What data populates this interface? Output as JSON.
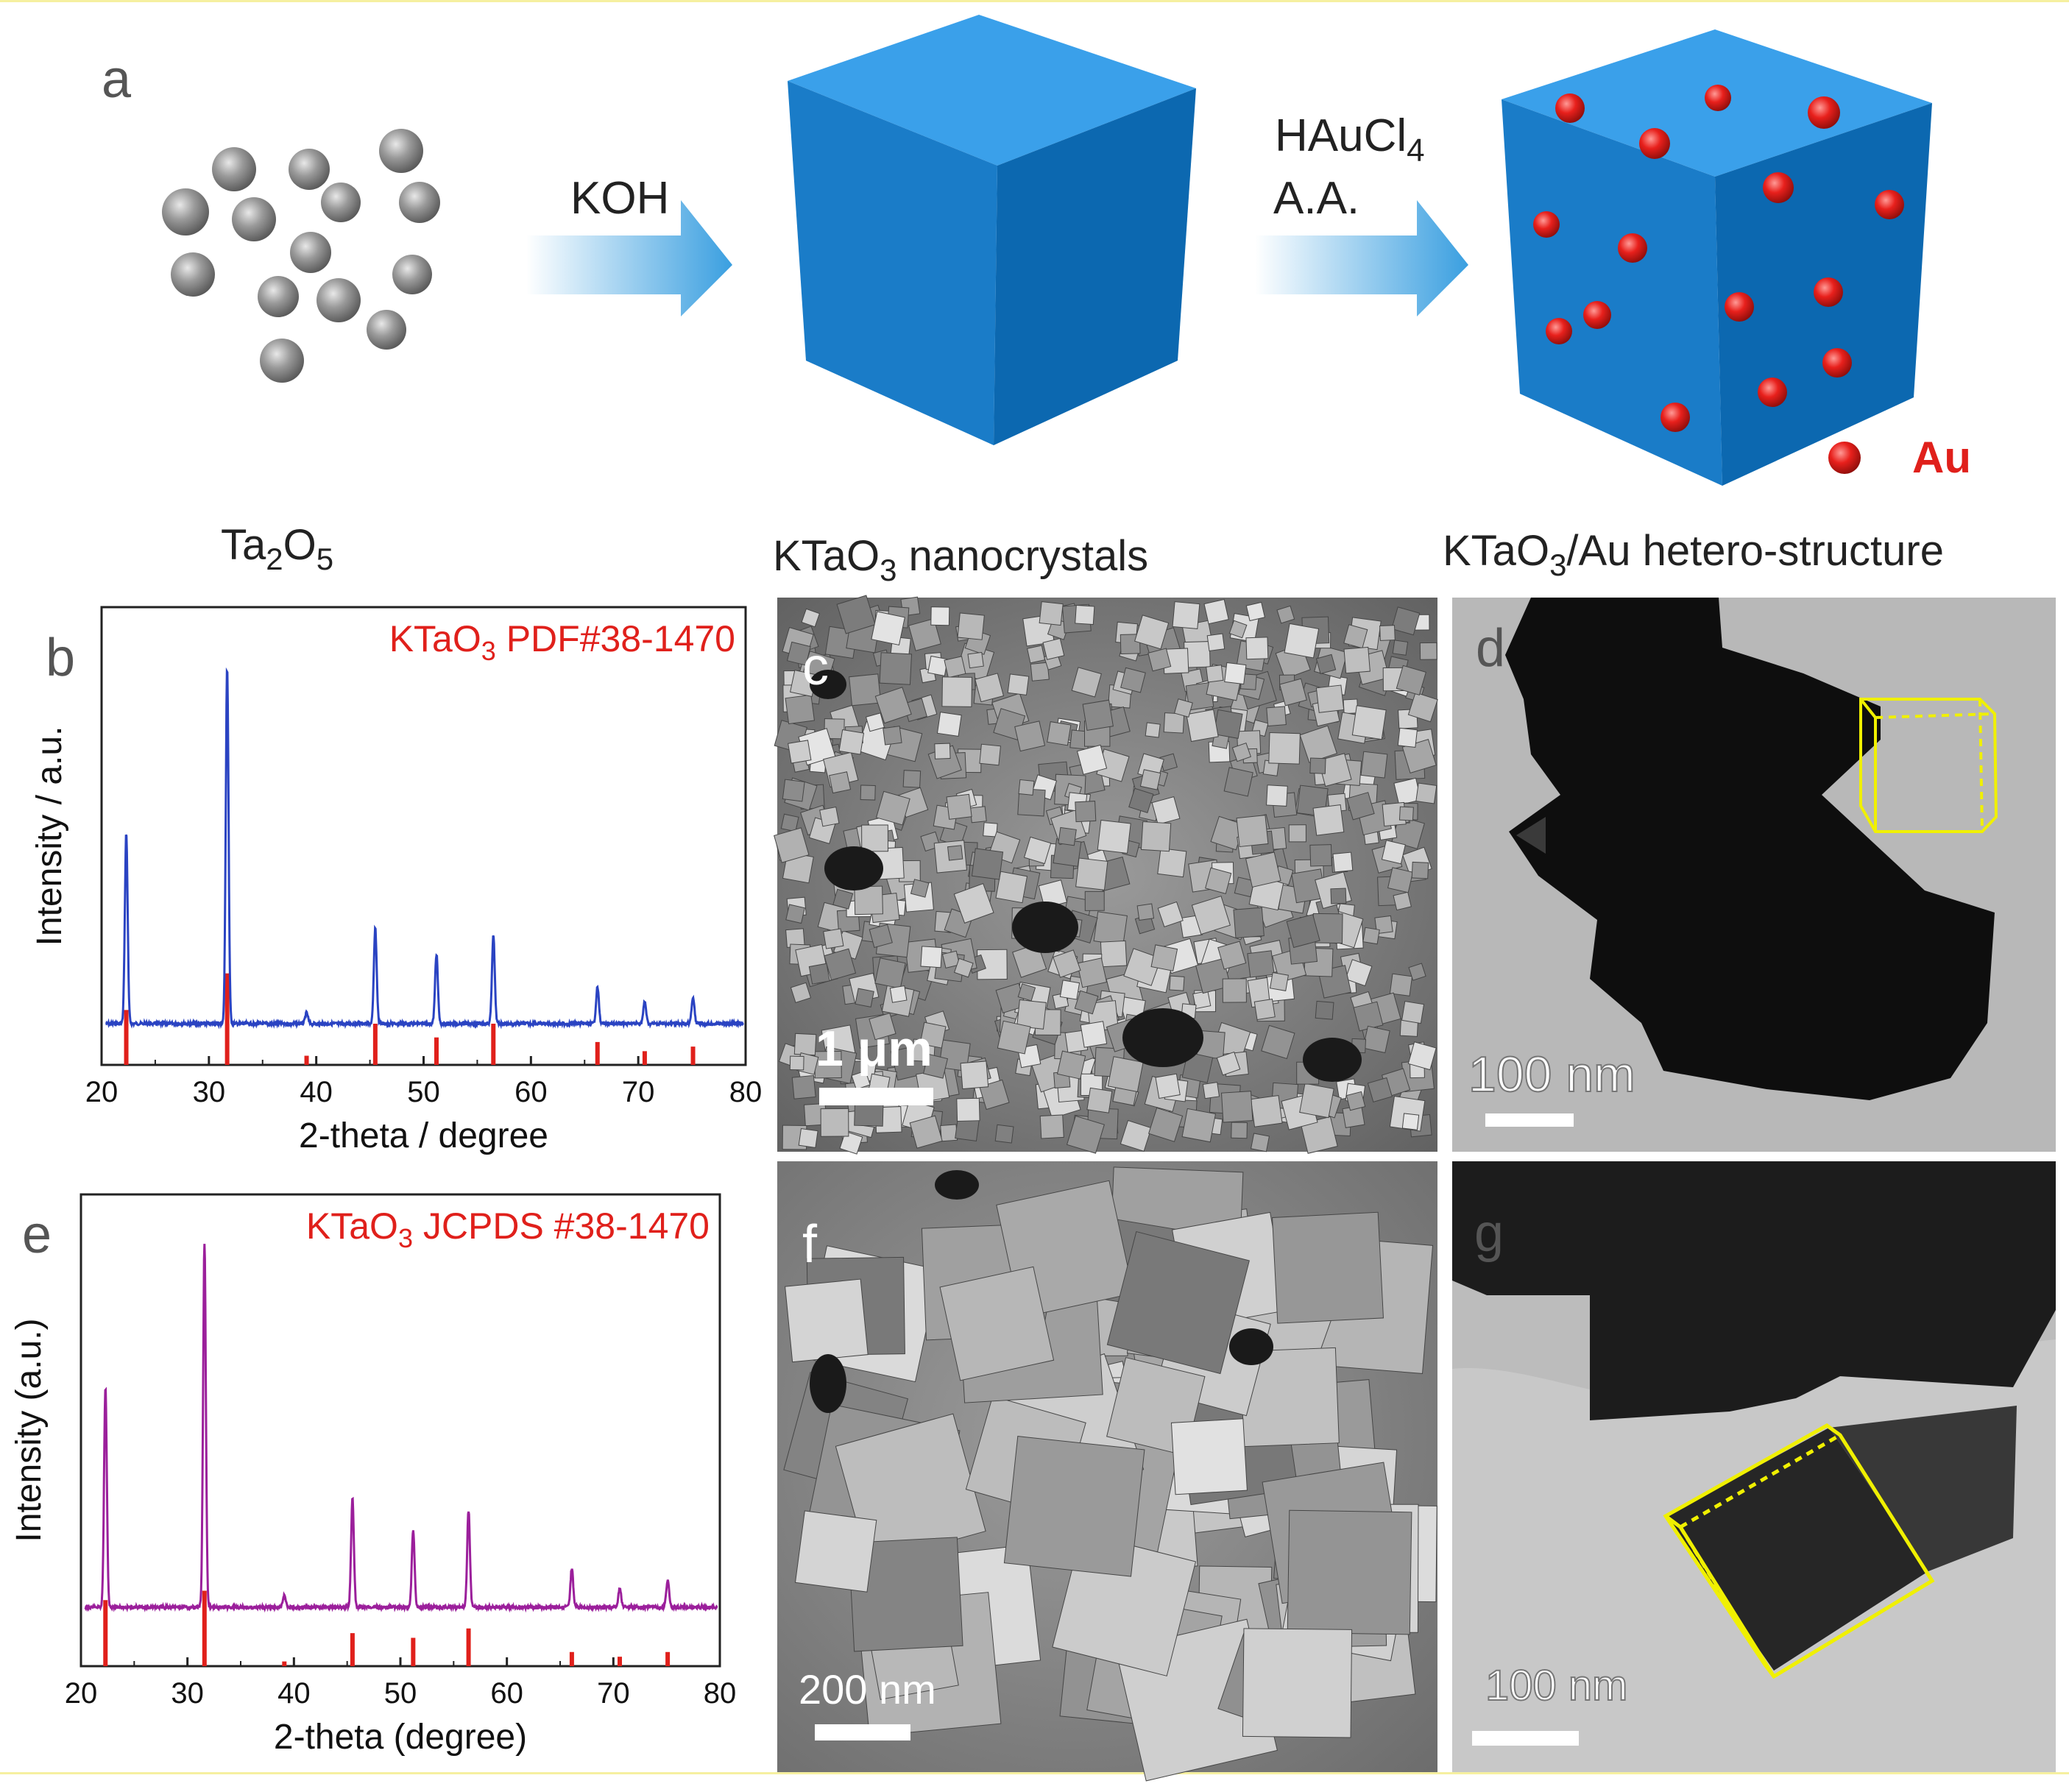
{
  "panel_labels": {
    "a": "a",
    "b": "b",
    "c": "c",
    "d": "d",
    "e": "e",
    "f": "f",
    "g": "g"
  },
  "schematic": {
    "step1_reagent": "KOH",
    "step2_reagent_line1": "HAuCl4",
    "step2_reagent_line2": "A.A.",
    "au_legend": "Au",
    "caption_precursor": "Ta2O5",
    "caption_nanocrystals": "KTaO3  nanocrystals",
    "caption_hetero": "KTaO3/Au hetero-structure",
    "colors": {
      "cube": "#1283d4",
      "au_particle": "#e0201b",
      "precursor_sphere": "#8c8c8c",
      "arrow": "#3a9fe0"
    }
  },
  "micrographs": {
    "c_scale": "1 μm",
    "d_scale": "100 nm",
    "f_scale": "200 nm",
    "g_scale": "100 nm",
    "overlay_color": "#f0f000"
  },
  "chart_data": [
    {
      "panel": "b",
      "type": "line",
      "title": "",
      "legend": "KTaO3 PDF#38-1470",
      "xlabel": "2-theta / degree",
      "ylabel": "Intensity / a.u.",
      "xlim": [
        20,
        80
      ],
      "xticks": [
        20,
        30,
        40,
        50,
        60,
        70,
        80
      ],
      "line_color": "#2a43c2",
      "ref_color": "#e0201b",
      "series": [
        {
          "peaks": [
            {
              "x": 22.3,
              "y": 0.52
            },
            {
              "x": 31.7,
              "y": 0.97
            },
            {
              "x": 39.1,
              "y": 0.03
            },
            {
              "x": 45.5,
              "y": 0.26
            },
            {
              "x": 51.2,
              "y": 0.19
            },
            {
              "x": 56.5,
              "y": 0.24
            },
            {
              "x": 66.2,
              "y": 0.1
            },
            {
              "x": 70.6,
              "y": 0.06
            },
            {
              "x": 75.1,
              "y": 0.07
            }
          ]
        }
      ],
      "reference_lines": [
        {
          "x": 22.3,
          "h": 0.12
        },
        {
          "x": 31.7,
          "h": 0.2
        },
        {
          "x": 39.1,
          "h": 0.02
        },
        {
          "x": 45.5,
          "h": 0.09
        },
        {
          "x": 51.2,
          "h": 0.06
        },
        {
          "x": 56.5,
          "h": 0.09
        },
        {
          "x": 66.2,
          "h": 0.05
        },
        {
          "x": 70.6,
          "h": 0.03
        },
        {
          "x": 75.1,
          "h": 0.04
        }
      ]
    },
    {
      "panel": "e",
      "type": "line",
      "title": "",
      "legend": "KTaO3 JCPDS #38-1470",
      "xlabel": "2-theta (degree)",
      "ylabel": "Intensity (a.u.)",
      "xlim": [
        20,
        80
      ],
      "xticks": [
        20,
        30,
        40,
        50,
        60,
        70,
        80
      ],
      "line_color": "#9b1f9b",
      "ref_color": "#e0201b",
      "series": [
        {
          "peaks": [
            {
              "x": 22.3,
              "y": 0.57
            },
            {
              "x": 31.6,
              "y": 0.94
            },
            {
              "x": 39.1,
              "y": 0.03
            },
            {
              "x": 45.5,
              "y": 0.28
            },
            {
              "x": 51.2,
              "y": 0.2
            },
            {
              "x": 56.4,
              "y": 0.25
            },
            {
              "x": 66.1,
              "y": 0.1
            },
            {
              "x": 70.6,
              "y": 0.05
            },
            {
              "x": 75.1,
              "y": 0.07
            }
          ]
        }
      ],
      "reference_lines": [
        {
          "x": 22.3,
          "h": 0.14
        },
        {
          "x": 31.6,
          "h": 0.16
        },
        {
          "x": 39.1,
          "h": 0.01
        },
        {
          "x": 45.5,
          "h": 0.07
        },
        {
          "x": 51.2,
          "h": 0.06
        },
        {
          "x": 56.4,
          "h": 0.08
        },
        {
          "x": 66.1,
          "h": 0.03
        },
        {
          "x": 70.6,
          "h": 0.02
        },
        {
          "x": 75.1,
          "h": 0.03
        }
      ]
    }
  ]
}
